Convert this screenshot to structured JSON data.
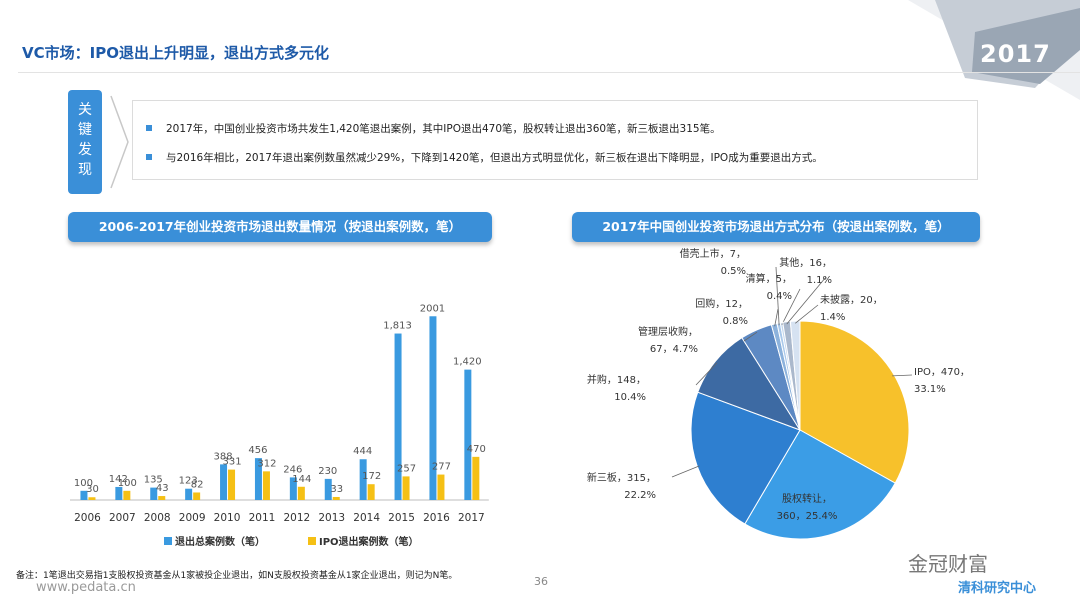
{
  "header": {
    "title": "VC市场：IPO退出上升明显，退出方式多元化",
    "year_badge": "2017"
  },
  "findings": {
    "tab_label": [
      "关",
      "键",
      "发",
      "现"
    ],
    "items": [
      "2017年，中国创业投资市场共发生1,420笔退出案例，其中IPO退出470笔，股权转让退出360笔，新三板退出315笔。",
      "与2016年相比，2017年退出案例数虽然减少29%，下降到1420笔，但退出方式明显优化，新三板在退出下降明显，IPO成为重要退出方式。"
    ]
  },
  "footer": {
    "note": "备注：1笔退出交易指1支股权投资基金从1家被投企业退出，如N支股权投资基金从1家企业退出，则记为N笔。",
    "website": "www.pedata.cn",
    "page": "36",
    "watermark_brand": "金冠财富",
    "watermark_sub": "清科研究中心"
  },
  "colors": {
    "accent": "#3a8fd8",
    "bar_total": "#3a9ae0",
    "bar_ipo": "#f5c015"
  },
  "chart_data": [
    {
      "type": "bar",
      "title": "2006-2017年创业投资市场退出数量情况（按退出案例数，笔）",
      "categories": [
        "2006",
        "2007",
        "2008",
        "2009",
        "2010",
        "2011",
        "2012",
        "2013",
        "2014",
        "2015",
        "2016",
        "2017"
      ],
      "series": [
        {
          "name": "退出总案例数（笔）",
          "values": [
            100,
            142,
            135,
            123,
            388,
            456,
            246,
            230,
            444,
            1813,
            2001,
            1420
          ],
          "labels": [
            "100",
            "142",
            "135",
            "123",
            "388",
            "456",
            "246",
            "230",
            "444",
            "1,813",
            "2001",
            "1,420"
          ],
          "color": "#3a9ae0"
        },
        {
          "name": "IPO退出案例数（笔）",
          "values": [
            30,
            100,
            43,
            82,
            331,
            312,
            144,
            33,
            172,
            257,
            277,
            470
          ],
          "labels": [
            "30",
            "100",
            "43",
            "82",
            "331",
            "312",
            "144",
            "33",
            "172",
            "257",
            "277",
            "470"
          ],
          "color": "#f5c015"
        }
      ],
      "ylim": [
        0,
        2200
      ],
      "grid": false,
      "legend": "bottom"
    },
    {
      "type": "pie",
      "title": "2017年中国创业投资市场退出方式分布（按退出案例数，笔）",
      "slices": [
        {
          "name": "IPO",
          "value": 470,
          "label": [
            "IPO，470，",
            "33.1%"
          ],
          "color": "#f7c12b"
        },
        {
          "name": "股权转让",
          "value": 360,
          "label": [
            "股权转让，",
            "360，25.4%"
          ],
          "color": "#3b9de6"
        },
        {
          "name": "新三板",
          "value": 315,
          "label": [
            "新三板，315，",
            "22.2%"
          ],
          "color": "#2e7fd0"
        },
        {
          "name": "并购",
          "value": 148,
          "label": [
            "并购，148，",
            "10.4%"
          ],
          "color": "#3d6aa3"
        },
        {
          "name": "管理层收购",
          "value": 67,
          "label": [
            "管理层收购，",
            "67，4.7%"
          ],
          "color": "#5d89c3"
        },
        {
          "name": "回购",
          "value": 12,
          "label": [
            "回购，12，",
            "0.8%"
          ],
          "color": "#8cb2dc"
        },
        {
          "name": "借壳上市",
          "value": 7,
          "label": [
            "借壳上市，7，",
            "0.5%"
          ],
          "color": "#a9c8ea"
        },
        {
          "name": "清算",
          "value": 5,
          "label": [
            "清算，5，",
            "0.4%"
          ],
          "color": "#c2d6ee"
        },
        {
          "name": "其他",
          "value": 16,
          "label": [
            "其他，16，",
            "1.1%"
          ],
          "color": "#aab8cc"
        },
        {
          "name": "未披露",
          "value": 20,
          "label": [
            "未披露，20，",
            "1.4%"
          ],
          "color": "#d6e2f1"
        }
      ]
    }
  ]
}
